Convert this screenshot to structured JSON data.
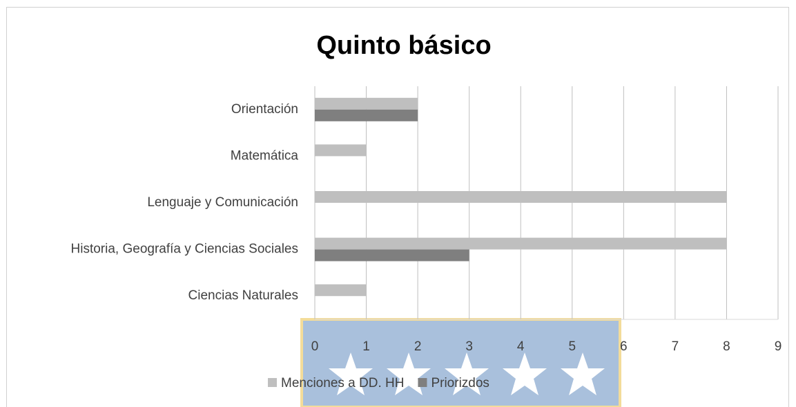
{
  "chart_data": {
    "type": "bar",
    "orientation": "horizontal",
    "title": "Quinto  básico",
    "categories": [
      "Orientación",
      "Matemática",
      "Lenguaje y Comunicación",
      "Historia, Geografía y Ciencias Sociales",
      "Ciencias Naturales"
    ],
    "series": [
      {
        "name": "Menciones a DD. HH",
        "color": "#bfbfbf",
        "values": [
          2,
          1,
          8,
          8,
          1
        ]
      },
      {
        "name": "Priorizdos",
        "color": "#7f7f7f",
        "values": [
          2,
          0,
          0,
          3,
          0
        ]
      }
    ],
    "xlim": [
      0,
      9
    ],
    "xticks": [
      0,
      1,
      2,
      3,
      4,
      5,
      6,
      7,
      8,
      9
    ],
    "grid": true,
    "legend": "bottom"
  }
}
